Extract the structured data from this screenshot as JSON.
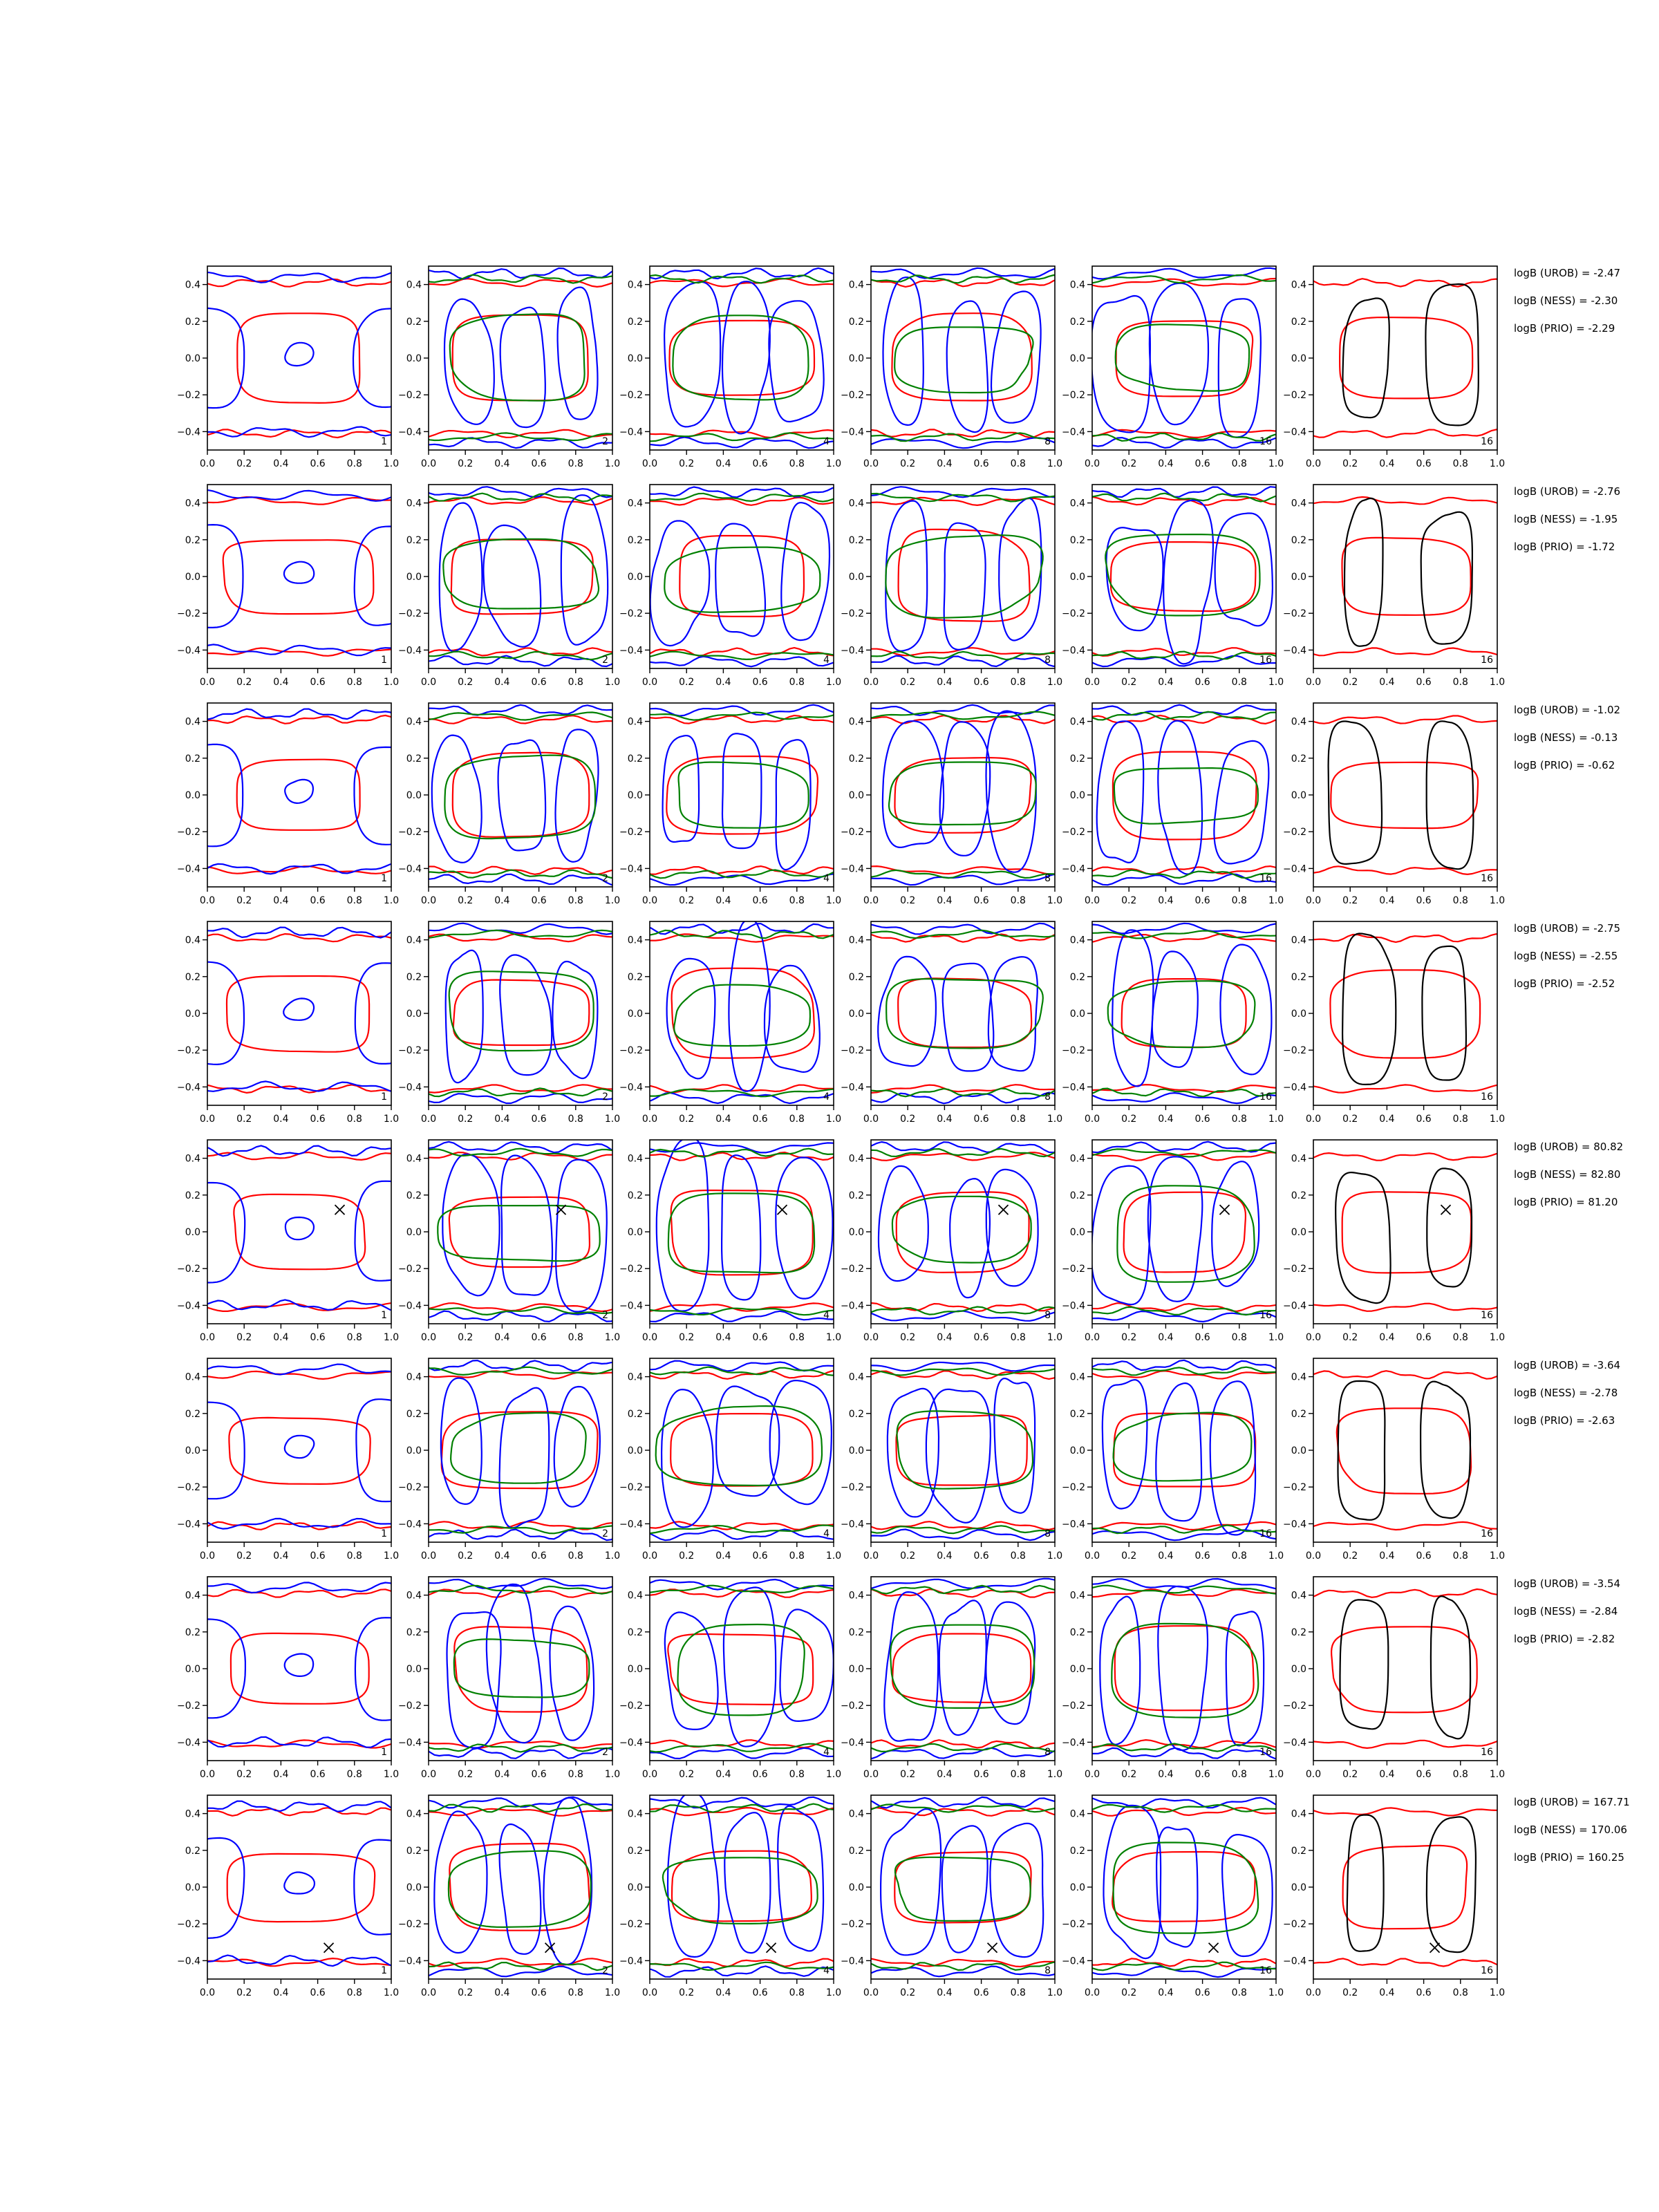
{
  "figure": {
    "columns": [
      "1",
      "2",
      "4",
      "8",
      "16",
      "16"
    ],
    "x_ticks": [
      "0.0",
      "0.2",
      "0.4",
      "0.6",
      "0.8",
      "1.0"
    ],
    "y_ticks": [
      "0.4",
      "0.2",
      "0.0",
      "−0.2",
      "−0.4"
    ],
    "colors": {
      "red": "#ff0000",
      "blue": "#0000ff",
      "green": "#008000",
      "black": "#000000"
    }
  },
  "chart_data": [
    {
      "type": "contour",
      "row": 1,
      "x_range": [
        0,
        1
      ],
      "y_range": [
        -0.5,
        0.5
      ],
      "panel_labels": [
        "1",
        "2",
        "4",
        "8",
        "16",
        "16"
      ],
      "stats": [
        "logB (UROB) = -2.47",
        "logB (NESS) = -2.30",
        "logB (PRIO) = -2.29"
      ]
    },
    {
      "type": "contour",
      "row": 2,
      "x_range": [
        0,
        1
      ],
      "y_range": [
        -0.5,
        0.5
      ],
      "panel_labels": [
        "1",
        "2",
        "4",
        "8",
        "16",
        "16"
      ],
      "stats": [
        "logB (UROB) = -2.76",
        "logB (NESS) = -1.95",
        "logB (PRIO) = -1.72"
      ]
    },
    {
      "type": "contour",
      "row": 3,
      "x_range": [
        0,
        1
      ],
      "y_range": [
        -0.5,
        0.5
      ],
      "panel_labels": [
        "1",
        "2",
        "4",
        "8",
        "16",
        "16"
      ],
      "stats": [
        "logB (UROB) = -1.02",
        "logB (NESS) = -0.13",
        "logB (PRIO) = -0.62"
      ]
    },
    {
      "type": "contour",
      "row": 4,
      "x_range": [
        0,
        1
      ],
      "y_range": [
        -0.5,
        0.5
      ],
      "panel_labels": [
        "1",
        "2",
        "4",
        "8",
        "16",
        "16"
      ],
      "stats": [
        "logB (UROB) = -2.75",
        "logB (NESS) = -2.55",
        "logB (PRIO) = -2.52"
      ]
    },
    {
      "type": "contour",
      "row": 5,
      "x_range": [
        0,
        1
      ],
      "y_range": [
        -0.5,
        0.5
      ],
      "panel_labels": [
        "1",
        "2",
        "4",
        "8",
        "16",
        "16"
      ],
      "marker": {
        "symbol": "x",
        "x": 0.72,
        "y": 0.12
      },
      "stats": [
        "logB (UROB) = 80.82",
        "logB (NESS) = 82.80",
        "logB (PRIO) = 81.20"
      ]
    },
    {
      "type": "contour",
      "row": 6,
      "x_range": [
        0,
        1
      ],
      "y_range": [
        -0.5,
        0.5
      ],
      "panel_labels": [
        "1",
        "2",
        "4",
        "8",
        "16",
        "16"
      ],
      "stats": [
        "logB (UROB) = -3.64",
        "logB (NESS) = -2.78",
        "logB (PRIO) = -2.63"
      ]
    },
    {
      "type": "contour",
      "row": 7,
      "x_range": [
        0,
        1
      ],
      "y_range": [
        -0.5,
        0.5
      ],
      "panel_labels": [
        "1",
        "2",
        "4",
        "8",
        "16",
        "16"
      ],
      "stats": [
        "logB (UROB) = -3.54",
        "logB (NESS) = -2.84",
        "logB (PRIO) = -2.82"
      ]
    },
    {
      "type": "contour",
      "row": 8,
      "x_range": [
        0,
        1
      ],
      "y_range": [
        -0.5,
        0.5
      ],
      "panel_labels": [
        "1",
        "2",
        "4",
        "8",
        "16",
        "16"
      ],
      "marker": {
        "symbol": "x",
        "x": 0.66,
        "y": -0.33
      },
      "stats": [
        "logB (UROB) = 167.71",
        "logB (NESS) = 170.06",
        "logB (PRIO) = 160.25"
      ]
    }
  ]
}
